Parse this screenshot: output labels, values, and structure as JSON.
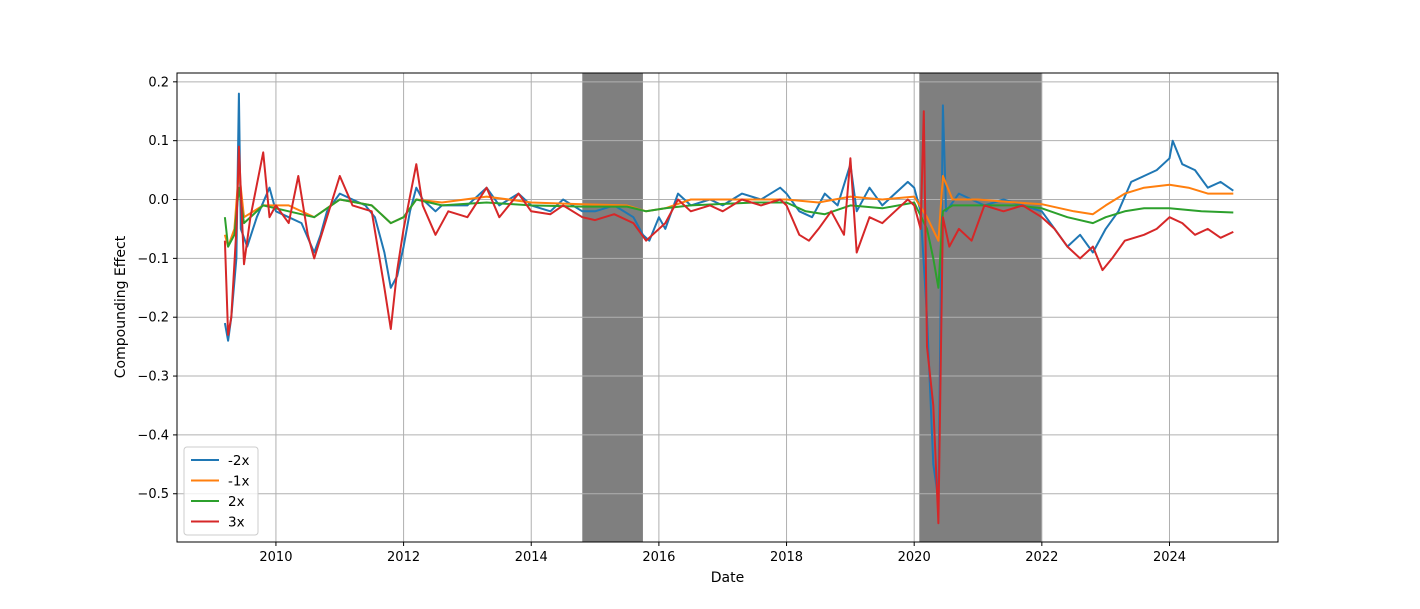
{
  "chart_data": {
    "type": "line",
    "title": "",
    "xlabel": "Date",
    "ylabel": "Compounding Effect",
    "xlim": [
      2008.45,
      2025.7
    ],
    "ylim": [
      -0.582,
      0.215
    ],
    "x_ticks": [
      2010,
      2012,
      2014,
      2016,
      2018,
      2020,
      2022,
      2024
    ],
    "x_tick_labels": [
      "2010",
      "2012",
      "2014",
      "2016",
      "2018",
      "2020",
      "2022",
      "2024"
    ],
    "y_ticks": [
      0.2,
      0.1,
      0.0,
      -0.1,
      -0.2,
      -0.3,
      -0.4,
      -0.5
    ],
    "y_tick_labels": [
      "0.2",
      "0.1",
      "0.0",
      "−0.1",
      "−0.2",
      "−0.3",
      "−0.4",
      "−0.5"
    ],
    "grid": true,
    "legend_position": "lower-left",
    "shaded_regions": [
      {
        "x_start": 2014.8,
        "x_end": 2015.75,
        "color": "#7f7f7f"
      },
      {
        "x_start": 2020.08,
        "x_end": 2022.0,
        "color": "#7f7f7f"
      }
    ],
    "series": [
      {
        "name": "-2x",
        "color": "#1f77b4",
        "points": [
          [
            2009.2,
            -0.21
          ],
          [
            2009.25,
            -0.24
          ],
          [
            2009.3,
            -0.2
          ],
          [
            2009.38,
            -0.1
          ],
          [
            2009.42,
            0.18
          ],
          [
            2009.45,
            -0.05
          ],
          [
            2009.55,
            -0.08
          ],
          [
            2009.7,
            -0.03
          ],
          [
            2009.9,
            0.02
          ],
          [
            2010.0,
            -0.02
          ],
          [
            2010.2,
            -0.03
          ],
          [
            2010.4,
            -0.04
          ],
          [
            2010.6,
            -0.09
          ],
          [
            2010.7,
            -0.06
          ],
          [
            2010.8,
            -0.02
          ],
          [
            2011.0,
            0.01
          ],
          [
            2011.2,
            0.0
          ],
          [
            2011.4,
            -0.01
          ],
          [
            2011.55,
            -0.03
          ],
          [
            2011.7,
            -0.09
          ],
          [
            2011.8,
            -0.15
          ],
          [
            2011.9,
            -0.13
          ],
          [
            2012.0,
            -0.08
          ],
          [
            2012.1,
            -0.02
          ],
          [
            2012.2,
            0.02
          ],
          [
            2012.3,
            0.0
          ],
          [
            2012.5,
            -0.02
          ],
          [
            2012.6,
            -0.01
          ],
          [
            2013.0,
            -0.01
          ],
          [
            2013.3,
            0.02
          ],
          [
            2013.5,
            -0.01
          ],
          [
            2013.8,
            0.01
          ],
          [
            2014.0,
            -0.01
          ],
          [
            2014.3,
            -0.02
          ],
          [
            2014.5,
            0.0
          ],
          [
            2014.8,
            -0.02
          ],
          [
            2015.0,
            -0.02
          ],
          [
            2015.3,
            -0.01
          ],
          [
            2015.6,
            -0.03
          ],
          [
            2015.75,
            -0.06
          ],
          [
            2015.85,
            -0.07
          ],
          [
            2016.0,
            -0.03
          ],
          [
            2016.1,
            -0.05
          ],
          [
            2016.3,
            0.01
          ],
          [
            2016.5,
            -0.01
          ],
          [
            2016.8,
            0.0
          ],
          [
            2017.0,
            -0.01
          ],
          [
            2017.3,
            0.01
          ],
          [
            2017.6,
            0.0
          ],
          [
            2017.9,
            0.02
          ],
          [
            2018.0,
            0.01
          ],
          [
            2018.2,
            -0.02
          ],
          [
            2018.4,
            -0.03
          ],
          [
            2018.6,
            0.01
          ],
          [
            2018.8,
            -0.01
          ],
          [
            2019.0,
            0.06
          ],
          [
            2019.1,
            -0.02
          ],
          [
            2019.3,
            0.02
          ],
          [
            2019.5,
            -0.01
          ],
          [
            2019.7,
            0.01
          ],
          [
            2019.9,
            0.03
          ],
          [
            2020.0,
            0.02
          ],
          [
            2020.1,
            -0.02
          ],
          [
            2020.2,
            -0.2
          ],
          [
            2020.3,
            -0.45
          ],
          [
            2020.38,
            -0.51
          ],
          [
            2020.45,
            0.16
          ],
          [
            2020.5,
            -0.02
          ],
          [
            2020.7,
            0.01
          ],
          [
            2020.9,
            0.0
          ],
          [
            2021.1,
            -0.01
          ],
          [
            2021.4,
            0.0
          ],
          [
            2021.7,
            -0.01
          ],
          [
            2022.0,
            -0.02
          ],
          [
            2022.2,
            -0.05
          ],
          [
            2022.4,
            -0.08
          ],
          [
            2022.6,
            -0.06
          ],
          [
            2022.8,
            -0.09
          ],
          [
            2023.0,
            -0.05
          ],
          [
            2023.2,
            -0.02
          ],
          [
            2023.4,
            0.03
          ],
          [
            2023.6,
            0.04
          ],
          [
            2023.8,
            0.05
          ],
          [
            2024.0,
            0.07
          ],
          [
            2024.05,
            0.1
          ],
          [
            2024.2,
            0.06
          ],
          [
            2024.4,
            0.05
          ],
          [
            2024.6,
            0.02
          ],
          [
            2024.8,
            0.03
          ],
          [
            2025.0,
            0.015
          ]
        ]
      },
      {
        "name": "-1x",
        "color": "#ff7f0e",
        "points": [
          [
            2009.2,
            -0.06
          ],
          [
            2009.25,
            -0.08
          ],
          [
            2009.35,
            -0.05
          ],
          [
            2009.42,
            0.05
          ],
          [
            2009.5,
            -0.03
          ],
          [
            2009.8,
            -0.01
          ],
          [
            2010.2,
            -0.01
          ],
          [
            2010.6,
            -0.03
          ],
          [
            2011.0,
            0.0
          ],
          [
            2011.5,
            -0.01
          ],
          [
            2011.8,
            -0.04
          ],
          [
            2012.0,
            -0.03
          ],
          [
            2012.2,
            0.0
          ],
          [
            2012.6,
            -0.005
          ],
          [
            2013.3,
            0.005
          ],
          [
            2014.0,
            -0.005
          ],
          [
            2014.8,
            -0.008
          ],
          [
            2015.5,
            -0.01
          ],
          [
            2015.8,
            -0.02
          ],
          [
            2016.1,
            -0.015
          ],
          [
            2016.5,
            0.0
          ],
          [
            2017.5,
            0.0
          ],
          [
            2018.0,
            0.0
          ],
          [
            2018.5,
            -0.005
          ],
          [
            2019.0,
            0.005
          ],
          [
            2019.5,
            0.0
          ],
          [
            2020.0,
            0.005
          ],
          [
            2020.2,
            -0.03
          ],
          [
            2020.38,
            -0.07
          ],
          [
            2020.45,
            0.04
          ],
          [
            2020.6,
            0.0
          ],
          [
            2021.0,
            0.0
          ],
          [
            2021.6,
            -0.005
          ],
          [
            2022.0,
            -0.008
          ],
          [
            2022.5,
            -0.02
          ],
          [
            2022.8,
            -0.025
          ],
          [
            2023.0,
            -0.01
          ],
          [
            2023.3,
            0.01
          ],
          [
            2023.6,
            0.02
          ],
          [
            2024.0,
            0.025
          ],
          [
            2024.3,
            0.02
          ],
          [
            2024.6,
            0.01
          ],
          [
            2025.0,
            0.01
          ]
        ]
      },
      {
        "name": "2x",
        "color": "#2ca02c",
        "points": [
          [
            2009.2,
            -0.03
          ],
          [
            2009.25,
            -0.08
          ],
          [
            2009.35,
            -0.06
          ],
          [
            2009.42,
            0.02
          ],
          [
            2009.5,
            -0.04
          ],
          [
            2009.8,
            -0.01
          ],
          [
            2010.2,
            -0.02
          ],
          [
            2010.6,
            -0.03
          ],
          [
            2011.0,
            0.0
          ],
          [
            2011.5,
            -0.01
          ],
          [
            2011.8,
            -0.04
          ],
          [
            2012.0,
            -0.03
          ],
          [
            2012.2,
            0.0
          ],
          [
            2012.6,
            -0.01
          ],
          [
            2013.3,
            -0.005
          ],
          [
            2014.0,
            -0.01
          ],
          [
            2014.8,
            -0.012
          ],
          [
            2015.5,
            -0.012
          ],
          [
            2015.8,
            -0.02
          ],
          [
            2016.1,
            -0.015
          ],
          [
            2016.5,
            -0.01
          ],
          [
            2017.5,
            -0.005
          ],
          [
            2018.0,
            -0.005
          ],
          [
            2018.3,
            -0.02
          ],
          [
            2018.6,
            -0.025
          ],
          [
            2019.0,
            -0.01
          ],
          [
            2019.5,
            -0.015
          ],
          [
            2020.0,
            -0.005
          ],
          [
            2020.2,
            -0.05
          ],
          [
            2020.3,
            -0.1
          ],
          [
            2020.38,
            -0.15
          ],
          [
            2020.45,
            -0.02
          ],
          [
            2020.6,
            -0.01
          ],
          [
            2021.0,
            -0.01
          ],
          [
            2021.6,
            -0.01
          ],
          [
            2022.0,
            -0.015
          ],
          [
            2022.4,
            -0.03
          ],
          [
            2022.8,
            -0.04
          ],
          [
            2023.0,
            -0.03
          ],
          [
            2023.3,
            -0.02
          ],
          [
            2023.6,
            -0.015
          ],
          [
            2024.0,
            -0.015
          ],
          [
            2024.5,
            -0.02
          ],
          [
            2025.0,
            -0.022
          ]
        ]
      },
      {
        "name": "3x",
        "color": "#d62728",
        "points": [
          [
            2009.2,
            -0.07
          ],
          [
            2009.25,
            -0.23
          ],
          [
            2009.3,
            -0.2
          ],
          [
            2009.38,
            -0.05
          ],
          [
            2009.42,
            0.09
          ],
          [
            2009.5,
            -0.11
          ],
          [
            2009.6,
            -0.03
          ],
          [
            2009.8,
            0.08
          ],
          [
            2009.9,
            -0.03
          ],
          [
            2010.0,
            -0.01
          ],
          [
            2010.2,
            -0.04
          ],
          [
            2010.35,
            0.04
          ],
          [
            2010.5,
            -0.06
          ],
          [
            2010.6,
            -0.1
          ],
          [
            2010.8,
            -0.03
          ],
          [
            2011.0,
            0.04
          ],
          [
            2011.2,
            -0.01
          ],
          [
            2011.5,
            -0.02
          ],
          [
            2011.7,
            -0.15
          ],
          [
            2011.8,
            -0.22
          ],
          [
            2011.9,
            -0.12
          ],
          [
            2012.0,
            -0.05
          ],
          [
            2012.2,
            0.06
          ],
          [
            2012.3,
            -0.01
          ],
          [
            2012.5,
            -0.06
          ],
          [
            2012.7,
            -0.02
          ],
          [
            2013.0,
            -0.03
          ],
          [
            2013.3,
            0.02
          ],
          [
            2013.5,
            -0.03
          ],
          [
            2013.8,
            0.01
          ],
          [
            2014.0,
            -0.02
          ],
          [
            2014.3,
            -0.025
          ],
          [
            2014.5,
            -0.01
          ],
          [
            2014.8,
            -0.03
          ],
          [
            2015.0,
            -0.035
          ],
          [
            2015.3,
            -0.025
          ],
          [
            2015.6,
            -0.04
          ],
          [
            2015.8,
            -0.07
          ],
          [
            2016.1,
            -0.04
          ],
          [
            2016.3,
            0.0
          ],
          [
            2016.5,
            -0.02
          ],
          [
            2016.8,
            -0.01
          ],
          [
            2017.0,
            -0.02
          ],
          [
            2017.3,
            0.0
          ],
          [
            2017.6,
            -0.01
          ],
          [
            2017.9,
            0.0
          ],
          [
            2018.0,
            -0.01
          ],
          [
            2018.2,
            -0.06
          ],
          [
            2018.35,
            -0.07
          ],
          [
            2018.5,
            -0.05
          ],
          [
            2018.7,
            -0.02
          ],
          [
            2018.9,
            -0.06
          ],
          [
            2019.0,
            0.07
          ],
          [
            2019.1,
            -0.09
          ],
          [
            2019.3,
            -0.03
          ],
          [
            2019.5,
            -0.04
          ],
          [
            2019.7,
            -0.02
          ],
          [
            2019.9,
            0.0
          ],
          [
            2020.0,
            -0.01
          ],
          [
            2020.1,
            -0.05
          ],
          [
            2020.15,
            0.15
          ],
          [
            2020.2,
            -0.25
          ],
          [
            2020.3,
            -0.35
          ],
          [
            2020.38,
            -0.55
          ],
          [
            2020.45,
            -0.03
          ],
          [
            2020.55,
            -0.08
          ],
          [
            2020.7,
            -0.05
          ],
          [
            2020.9,
            -0.07
          ],
          [
            2021.1,
            -0.01
          ],
          [
            2021.4,
            -0.02
          ],
          [
            2021.7,
            -0.01
          ],
          [
            2022.0,
            -0.03
          ],
          [
            2022.2,
            -0.05
          ],
          [
            2022.4,
            -0.08
          ],
          [
            2022.6,
            -0.1
          ],
          [
            2022.8,
            -0.08
          ],
          [
            2022.95,
            -0.12
          ],
          [
            2023.1,
            -0.1
          ],
          [
            2023.3,
            -0.07
          ],
          [
            2023.6,
            -0.06
          ],
          [
            2023.8,
            -0.05
          ],
          [
            2024.0,
            -0.03
          ],
          [
            2024.2,
            -0.04
          ],
          [
            2024.4,
            -0.06
          ],
          [
            2024.6,
            -0.05
          ],
          [
            2024.8,
            -0.065
          ],
          [
            2025.0,
            -0.055
          ]
        ]
      }
    ]
  }
}
